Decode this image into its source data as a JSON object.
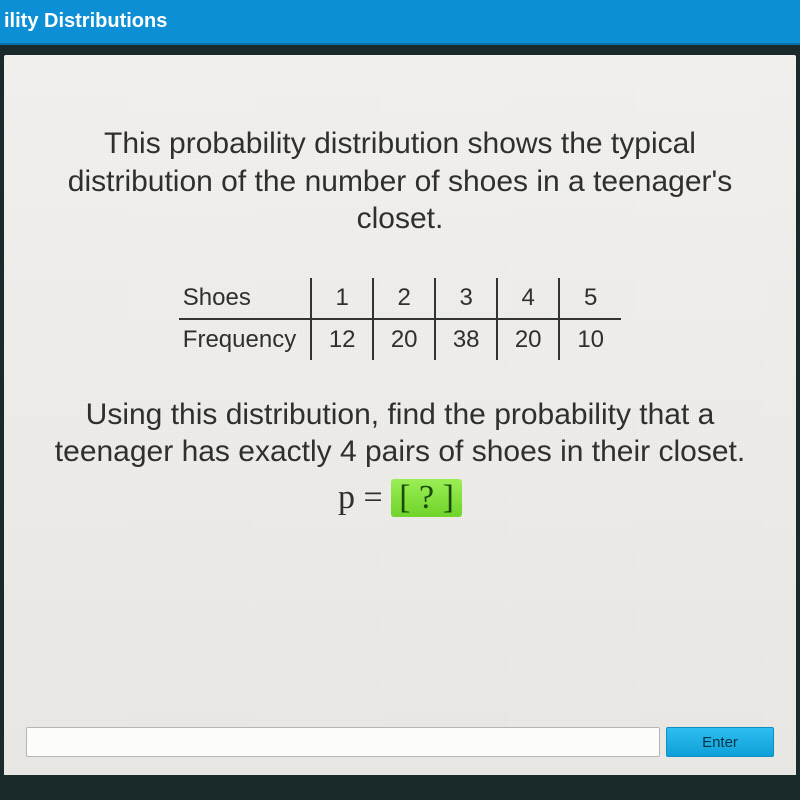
{
  "header": {
    "title": "ility Distributions"
  },
  "intro": "This probability distribution shows the typical distribution of the number of shoes in a teenager's closet.",
  "table": {
    "row_labels": [
      "Shoes",
      "Frequency"
    ],
    "shoes": [
      1,
      2,
      3,
      4,
      5
    ],
    "frequency": [
      12,
      20,
      38,
      20,
      10
    ],
    "columns": 5
  },
  "question": "Using this distribution, find the probability that a teenager has exactly 4 pairs of shoes in their closet.",
  "formula": {
    "lhs": "p = ",
    "placeholder": "[ ? ]"
  },
  "input": {
    "placeholder": ""
  },
  "enter_label": "Enter",
  "colors": {
    "header_bg": "#0d8fd6",
    "panel_bg": "#eceae6",
    "body_bg": "#1a2a2a",
    "accent_green": "#8ee84a",
    "enter_bg": "#1fb0e8",
    "text": "#2f2f2f",
    "rule": "#333333"
  },
  "typography": {
    "body_fontsize_pt": 30,
    "table_fontsize_pt": 24,
    "formula_fontsize_pt": 34,
    "header_fontsize_pt": 20
  }
}
